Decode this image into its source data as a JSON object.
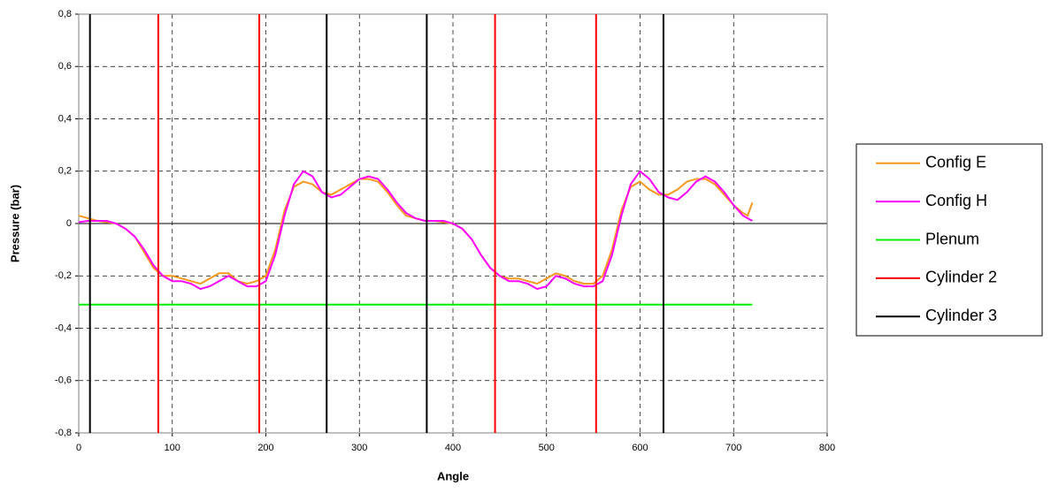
{
  "chart_data": {
    "type": "line",
    "xlabel": "Angle",
    "ylabel": "Pressure (bar)",
    "xlim": [
      0,
      800
    ],
    "xticks": [
      0,
      100,
      200,
      300,
      400,
      500,
      600,
      700,
      800
    ],
    "ylim": [
      -0.8,
      0.8
    ],
    "yticks": [
      {
        "value": -0.8,
        "label": "-0,8"
      },
      {
        "value": -0.6,
        "label": "-0,6"
      },
      {
        "value": -0.4,
        "label": "-0,4"
      },
      {
        "value": -0.2,
        "label": "-0,2"
      },
      0,
      {
        "value": 0.2,
        "label": "0,2"
      },
      {
        "value": 0.4,
        "label": "0,4"
      },
      {
        "value": 0.6,
        "label": "0,6"
      },
      {
        "value": 0.8,
        "label": "0,8"
      }
    ],
    "grid": true,
    "legend": "right",
    "series": [
      {
        "name": "Config E",
        "color": "#f7981d",
        "x": [
          0,
          10,
          20,
          30,
          40,
          50,
          60,
          70,
          80,
          90,
          100,
          110,
          120,
          130,
          140,
          150,
          160,
          170,
          180,
          190,
          200,
          210,
          220,
          230,
          240,
          250,
          260,
          270,
          280,
          290,
          300,
          310,
          320,
          330,
          340,
          350,
          360,
          370,
          380,
          390,
          400,
          410,
          420,
          430,
          440,
          450,
          460,
          470,
          480,
          490,
          500,
          510,
          520,
          530,
          540,
          550,
          560,
          570,
          580,
          590,
          600,
          610,
          620,
          630,
          640,
          650,
          660,
          670,
          680,
          690,
          700,
          710,
          715,
          720
        ],
        "values": [
          0.03,
          0.02,
          0.01,
          0.005,
          0.0,
          -0.02,
          -0.05,
          -0.11,
          -0.17,
          -0.2,
          -0.2,
          -0.21,
          -0.22,
          -0.23,
          -0.21,
          -0.19,
          -0.19,
          -0.22,
          -0.23,
          -0.22,
          -0.2,
          -0.1,
          0.05,
          0.14,
          0.16,
          0.15,
          0.12,
          0.11,
          0.13,
          0.15,
          0.17,
          0.17,
          0.16,
          0.12,
          0.07,
          0.03,
          0.02,
          0.01,
          0.01,
          0.005,
          0.0,
          -0.02,
          -0.06,
          -0.12,
          -0.17,
          -0.2,
          -0.21,
          -0.21,
          -0.22,
          -0.23,
          -0.21,
          -0.19,
          -0.2,
          -0.22,
          -0.23,
          -0.23,
          -0.2,
          -0.1,
          0.05,
          0.14,
          0.16,
          0.13,
          0.11,
          0.11,
          0.13,
          0.16,
          0.17,
          0.17,
          0.15,
          0.11,
          0.07,
          0.04,
          0.03,
          0.08
        ]
      },
      {
        "name": "Config H",
        "color": "#ff00ff",
        "x": [
          0,
          10,
          20,
          30,
          40,
          50,
          60,
          70,
          80,
          90,
          100,
          110,
          120,
          130,
          140,
          150,
          160,
          170,
          180,
          190,
          200,
          210,
          220,
          230,
          240,
          250,
          260,
          270,
          280,
          290,
          300,
          310,
          320,
          330,
          340,
          350,
          360,
          370,
          380,
          390,
          400,
          410,
          420,
          430,
          440,
          450,
          460,
          470,
          480,
          490,
          500,
          510,
          520,
          530,
          540,
          550,
          560,
          570,
          580,
          590,
          600,
          610,
          620,
          630,
          640,
          650,
          660,
          670,
          680,
          690,
          700,
          710,
          720
        ],
        "values": [
          0.005,
          0.01,
          0.01,
          0.01,
          0.0,
          -0.02,
          -0.05,
          -0.1,
          -0.16,
          -0.2,
          -0.22,
          -0.22,
          -0.23,
          -0.25,
          -0.24,
          -0.22,
          -0.2,
          -0.22,
          -0.24,
          -0.24,
          -0.22,
          -0.12,
          0.03,
          0.15,
          0.2,
          0.18,
          0.12,
          0.1,
          0.11,
          0.14,
          0.17,
          0.18,
          0.17,
          0.13,
          0.08,
          0.04,
          0.02,
          0.01,
          0.01,
          0.01,
          0.0,
          -0.02,
          -0.06,
          -0.12,
          -0.17,
          -0.2,
          -0.22,
          -0.22,
          -0.23,
          -0.25,
          -0.24,
          -0.2,
          -0.21,
          -0.23,
          -0.24,
          -0.24,
          -0.22,
          -0.12,
          0.03,
          0.15,
          0.2,
          0.17,
          0.12,
          0.1,
          0.09,
          0.12,
          0.16,
          0.18,
          0.16,
          0.12,
          0.07,
          0.03,
          0.01
        ]
      },
      {
        "name": "Plenum",
        "color": "#00ee00",
        "x": [
          0,
          720
        ],
        "values": [
          -0.31,
          -0.31
        ]
      },
      {
        "name": "Cylinder 2",
        "color": "#ff0000",
        "vlines": [
          85,
          193,
          445,
          553
        ]
      },
      {
        "name": "Cylinder 3",
        "color": "#000000",
        "vlines": [
          12,
          265,
          372,
          625
        ]
      }
    ]
  }
}
